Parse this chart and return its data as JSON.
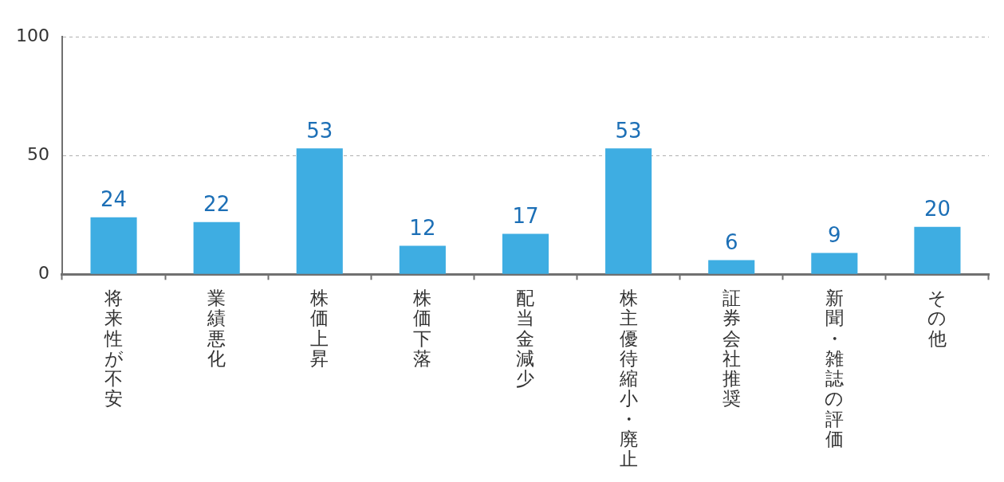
{
  "chart_data": {
    "type": "bar",
    "categories": [
      "将来性が不安",
      "業績悪化",
      "株価上昇",
      "株価下落",
      "配当金減少",
      "株主優待縮小・廃止",
      "証券会社推奨",
      "新聞・雑誌の評価",
      "その他"
    ],
    "values": [
      24,
      22,
      53,
      12,
      17,
      53,
      6,
      9,
      20
    ],
    "color": "#3eade2",
    "ylim": [
      0,
      100
    ],
    "yticks": [
      0,
      50,
      100
    ],
    "grid": "y",
    "data_labels": true
  }
}
